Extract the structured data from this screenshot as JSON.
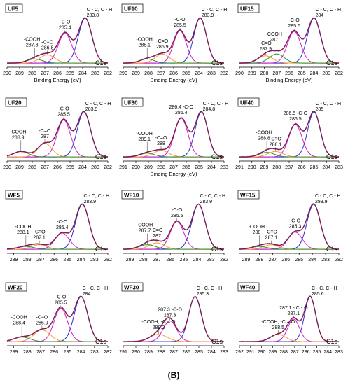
{
  "figure_label": "(B)",
  "colors": {
    "envelope": "#7a1e5a",
    "raw": "#c0392b",
    "cc": "#2a2ad0",
    "co": "#d41cc8",
    "ceo": "#ff9933",
    "cooh": "#2f8f2f",
    "baseline": "#33bbbb"
  },
  "chart_data": [
    {
      "type": "line",
      "name": "UF5",
      "xlabel": "Binding Energy (eV)",
      "tag": "C1s",
      "xlim": [
        290,
        282
      ],
      "ticks": [
        290,
        289,
        288,
        287,
        286,
        285,
        284,
        283,
        282
      ],
      "peaks": [
        {
          "label": "C - C, C - H",
          "pos": 283.8,
          "amp": 1.0,
          "width": 0.85,
          "color": "cc"
        },
        {
          "label": "-C-O",
          "pos": 285.4,
          "amp": 0.66,
          "width": 0.85,
          "color": "co"
        },
        {
          "label": "-C=O",
          "pos": 286.8,
          "amp": 0.18,
          "width": 0.95,
          "color": "ceo"
        },
        {
          "label": "-COOH",
          "pos": 287.8,
          "amp": 0.09,
          "width": 0.95,
          "color": "cooh"
        }
      ]
    },
    {
      "type": "line",
      "name": "UF10",
      "xlabel": "Binding Energy (eV)",
      "tag": "C1s",
      "xlim": [
        290,
        282
      ],
      "ticks": [
        290,
        289,
        288,
        287,
        286,
        285,
        284,
        283,
        282
      ],
      "peaks": [
        {
          "label": "C - C, C - H",
          "pos": 283.9,
          "amp": 1.0,
          "width": 0.8,
          "color": "cc"
        },
        {
          "label": "-C-O",
          "pos": 285.5,
          "amp": 0.72,
          "width": 0.8,
          "color": "co"
        },
        {
          "label": "-C=O",
          "pos": 286.9,
          "amp": 0.2,
          "width": 0.9,
          "color": "ceo"
        },
        {
          "label": "-COOH",
          "pos": 288.1,
          "amp": 0.09,
          "width": 0.9,
          "color": "cooh"
        }
      ]
    },
    {
      "type": "line",
      "name": "UF15",
      "xlabel": "Binding Energy (eV)",
      "tag": "C1s",
      "xlim": [
        290,
        282
      ],
      "ticks": [
        290,
        289,
        288,
        287,
        286,
        285,
        284,
        283,
        282
      ],
      "peaks": [
        {
          "label": "C - C, C - H",
          "pos": 284.0,
          "amp": 1.0,
          "width": 0.85,
          "color": "cc"
        },
        {
          "label": "-C-O",
          "pos": 285.6,
          "amp": 0.7,
          "width": 0.85,
          "color": "co"
        },
        {
          "label": "-C=O",
          "pos": 287.9,
          "amp": 0.16,
          "width": 0.95,
          "color": "ceo"
        },
        {
          "label": "-COOH",
          "pos": 287.0,
          "amp": 0.2,
          "width": 0.95,
          "color": "cooh"
        }
      ]
    },
    {
      "type": "line",
      "name": "UF20",
      "xlabel": "",
      "tag": "C1s",
      "xlim": [
        290,
        282
      ],
      "ticks": [
        290,
        289,
        288,
        287,
        286,
        285,
        284,
        283,
        282
      ],
      "peaks": [
        {
          "label": "C - C, C - H",
          "pos": 283.9,
          "amp": 1.0,
          "width": 0.85,
          "color": "cc"
        },
        {
          "label": "-C-O",
          "pos": 285.5,
          "amp": 0.82,
          "width": 0.85,
          "color": "co"
        },
        {
          "label": "-C=O",
          "pos": 287.0,
          "amp": 0.3,
          "width": 0.9,
          "color": "ceo"
        },
        {
          "label": "-COOH",
          "pos": 288.9,
          "amp": 0.12,
          "width": 0.95,
          "color": "cooh"
        }
      ]
    },
    {
      "type": "line",
      "name": "UF30",
      "xlabel": "Binding Energy (eV)",
      "tag": "C1s",
      "xlim": [
        291,
        283
      ],
      "ticks": [
        291,
        290,
        289,
        288,
        287,
        286,
        285,
        284,
        283
      ],
      "peaks": [
        {
          "label": "C - C, C - H",
          "pos": 284.8,
          "amp": 1.0,
          "width": 0.8,
          "color": "cc"
        },
        {
          "label": "286.4 -C-O",
          "pos": 286.4,
          "amp": 0.86,
          "width": 0.85,
          "color": "co"
        },
        {
          "label": "-C=O",
          "pos": 288.0,
          "amp": 0.14,
          "width": 0.95,
          "color": "ceo"
        },
        {
          "label": "-COOH",
          "pos": 289.1,
          "amp": 0.08,
          "width": 0.95,
          "color": "cooh"
        }
      ]
    },
    {
      "type": "line",
      "name": "UF40",
      "xlabel": "",
      "tag": "C1s",
      "xlim": [
        291,
        283
      ],
      "ticks": [
        291,
        290,
        289,
        288,
        287,
        286,
        285,
        284,
        283
      ],
      "peaks": [
        {
          "label": "C - C, C - H",
          "pos": 285.0,
          "amp": 1.0,
          "width": 0.8,
          "color": "cc"
        },
        {
          "label": "286.5 -C-O",
          "pos": 286.5,
          "amp": 0.72,
          "width": 0.85,
          "color": "co"
        },
        {
          "label": "-C=O",
          "pos": 288.1,
          "amp": 0.12,
          "width": 0.95,
          "color": "ceo"
        },
        {
          "label": "-COOH",
          "pos": 288.8,
          "amp": 0.1,
          "width": 0.95,
          "color": "cooh"
        }
      ]
    },
    {
      "type": "line",
      "name": "WF5",
      "xlabel": "",
      "tag": "C1s",
      "xlim": [
        289.5,
        282
      ],
      "ticks": [
        289,
        288,
        287,
        286,
        285,
        284,
        283,
        282
      ],
      "peaks": [
        {
          "label": "C - C, C - H",
          "pos": 283.9,
          "amp": 1.0,
          "width": 0.8,
          "color": "cc"
        },
        {
          "label": "-C-O",
          "pos": 285.4,
          "amp": 0.36,
          "width": 0.85,
          "color": "co"
        },
        {
          "label": "-C=O",
          "pos": 287.1,
          "amp": 0.1,
          "width": 0.9,
          "color": "ceo"
        },
        {
          "label": "-COOH",
          "pos": 288.1,
          "amp": 0.06,
          "width": 0.95,
          "color": "cooh"
        }
      ]
    },
    {
      "type": "line",
      "name": "WF10",
      "xlabel": "",
      "tag": "C1s",
      "xlim": [
        289.5,
        282
      ],
      "ticks": [
        289,
        288,
        287,
        286,
        285,
        284,
        283,
        282
      ],
      "peaks": [
        {
          "label": "C - C, C - H",
          "pos": 283.9,
          "amp": 1.0,
          "width": 0.8,
          "color": "cc"
        },
        {
          "label": "-C-O",
          "pos": 285.5,
          "amp": 0.62,
          "width": 0.8,
          "color": "co"
        },
        {
          "label": "-C=O",
          "pos": 287.0,
          "amp": 0.14,
          "width": 0.9,
          "color": "ceo"
        },
        {
          "label": "-COOH",
          "pos": 287.7,
          "amp": 0.1,
          "width": 0.95,
          "color": "cooh"
        }
      ]
    },
    {
      "type": "line",
      "name": "WF15",
      "xlabel": "",
      "tag": "C1s",
      "xlim": [
        289.5,
        282
      ],
      "ticks": [
        289,
        288,
        287,
        286,
        285,
        284,
        283,
        282
      ],
      "peaks": [
        {
          "label": "C - C, C - H",
          "pos": 283.9,
          "amp": 1.0,
          "width": 0.8,
          "color": "cc"
        },
        {
          "label": "-C-O",
          "pos": 285.3,
          "amp": 0.38,
          "width": 0.85,
          "color": "co"
        },
        {
          "label": "-C=O",
          "pos": 287.1,
          "amp": 0.1,
          "width": 0.9,
          "color": "ceo"
        },
        {
          "label": "-COOH",
          "pos": 288.0,
          "amp": 0.06,
          "width": 0.95,
          "color": "cooh"
        }
      ]
    },
    {
      "type": "line",
      "name": "WF20",
      "xlabel": "",
      "tag": "C1s",
      "xlim": [
        289.5,
        282
      ],
      "ticks": [
        289,
        288,
        287,
        286,
        285,
        284,
        283,
        282
      ],
      "peaks": [
        {
          "label": "C - C, C - H",
          "pos": 284.0,
          "amp": 1.0,
          "width": 0.8,
          "color": "cc"
        },
        {
          "label": "-C-O",
          "pos": 285.5,
          "amp": 0.74,
          "width": 0.8,
          "color": "co"
        },
        {
          "label": "-C=O",
          "pos": 286.9,
          "amp": 0.26,
          "width": 0.95,
          "color": "ceo"
        },
        {
          "label": "-COOH",
          "pos": 288.4,
          "amp": 0.1,
          "width": 0.95,
          "color": "cooh"
        }
      ]
    },
    {
      "type": "line",
      "name": "WF30",
      "xlabel": "",
      "tag": "C1s",
      "xlim": [
        291,
        283
      ],
      "ticks": [
        291,
        290,
        289,
        288,
        287,
        286,
        285,
        284,
        283
      ],
      "peaks": [
        {
          "label": "C - C, C - H",
          "pos": 285.3,
          "amp": 1.0,
          "width": 0.8,
          "color": "cc"
        },
        {
          "label": "287.3 -C-O",
          "pos": 287.3,
          "amp": 0.46,
          "width": 0.85,
          "color": "co"
        },
        {
          "label": "-COOH, -C = O",
          "pos": 288.2,
          "amp": 0.16,
          "width": 1.1,
          "color": "ceo"
        }
      ]
    },
    {
      "type": "line",
      "name": "WF40",
      "xlabel": "",
      "tag": "C1s",
      "xlim": [
        292,
        283
      ],
      "ticks": [
        292,
        291,
        290,
        289,
        288,
        287,
        286,
        285,
        284,
        283
      ],
      "peaks": [
        {
          "label": "C - C, C - H",
          "pos": 285.6,
          "amp": 1.0,
          "width": 0.8,
          "color": "cc"
        },
        {
          "label": "287.1 - C - O",
          "pos": 287.1,
          "amp": 0.5,
          "width": 0.85,
          "color": "co"
        },
        {
          "label": "-COOH, -C = O",
          "pos": 288.5,
          "amp": 0.16,
          "width": 1.1,
          "color": "ceo"
        }
      ]
    }
  ]
}
